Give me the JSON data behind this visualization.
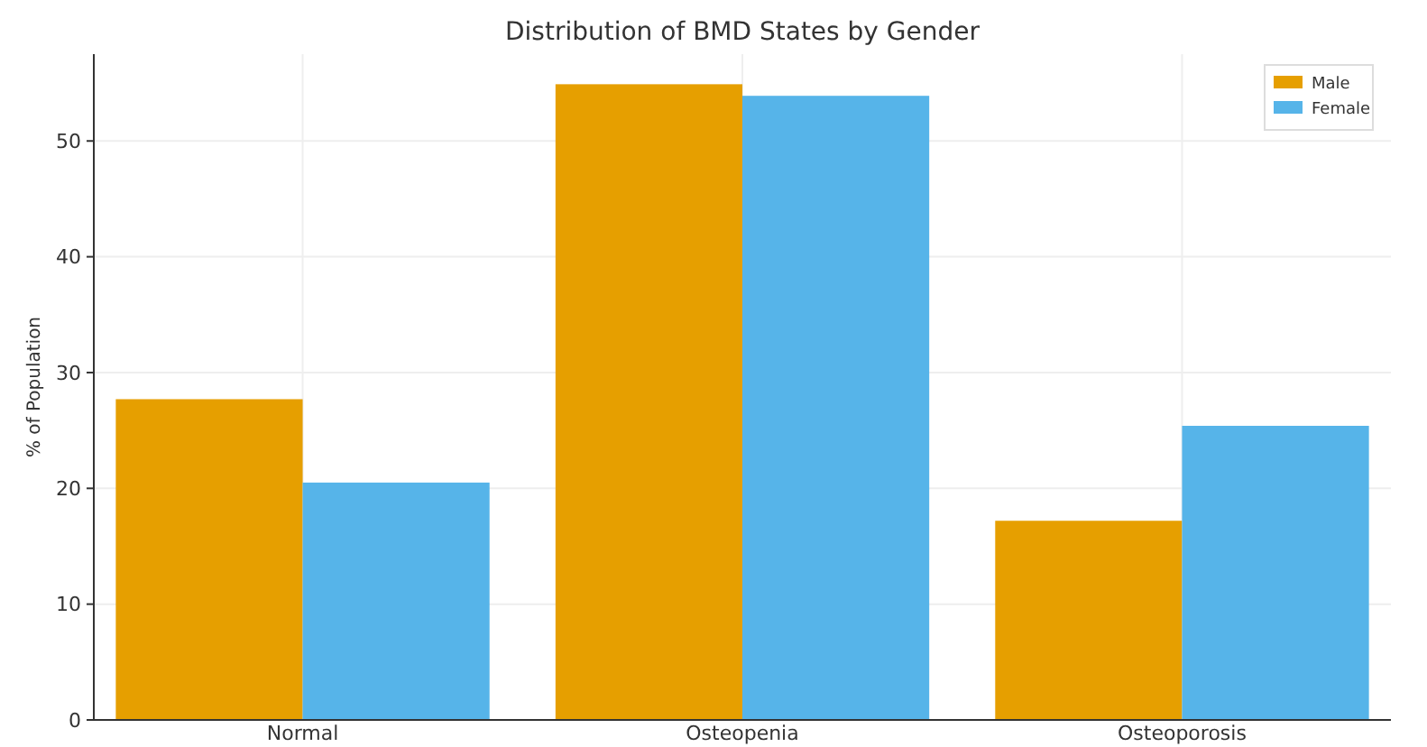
{
  "chart_data": {
    "type": "bar",
    "title": "Distribution of BMD States by Gender",
    "ylabel": "% of Population",
    "categories": [
      "Normal",
      "Osteopenia",
      "Osteoporosis"
    ],
    "series": [
      {
        "name": "Male",
        "color": "#e69f00",
        "values": [
          27.7,
          54.9,
          17.2
        ]
      },
      {
        "name": "Female",
        "color": "#56b4e9",
        "values": [
          20.5,
          53.9,
          25.4
        ]
      }
    ],
    "ylim": [
      0,
      57.5
    ],
    "yticks": [
      0,
      10,
      20,
      30,
      40,
      50
    ],
    "grid": true,
    "legend": "top right"
  }
}
